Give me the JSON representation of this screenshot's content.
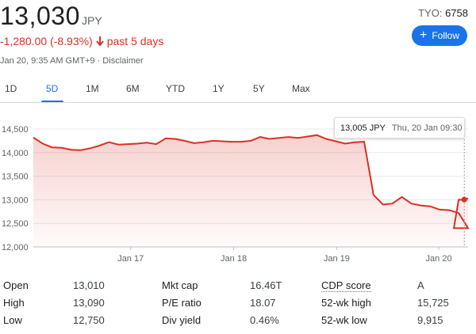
{
  "header": {
    "price": "13,030",
    "currency": "JPY",
    "change": "-1,280.00 (-8.93%)",
    "change_period": "past 5 days",
    "meta": "Jan 20, 9:35 AM GMT+9 · Disclaimer",
    "exchange": "TYO:",
    "symbol": "6758",
    "follow_label": "Follow",
    "change_color": "#d93025",
    "accent": "#1a73e8"
  },
  "tabs": [
    "1D",
    "5D",
    "1M",
    "6M",
    "YTD",
    "1Y",
    "5Y",
    "Max"
  ],
  "active_tab": "5D",
  "tooltip": {
    "price": "13,005 JPY",
    "date": "Thu, 20 Jan 09:30"
  },
  "chart_data": {
    "type": "area",
    "title": "",
    "xlabel": "",
    "ylabel": "",
    "ylim": [
      12000,
      14500
    ],
    "yticks": [
      12000,
      12500,
      13000,
      13500,
      14000,
      14500
    ],
    "ytick_labels": [
      "12,000",
      "12,500",
      "13,000",
      "13,500",
      "14,000",
      "14,500"
    ],
    "xtick_labels": [
      "Jan 17",
      "Jan 18",
      "Jan 19",
      "Jan 20"
    ],
    "xtick_positions": [
      10.3,
      21.2,
      32.1,
      42.9
    ],
    "xlim": [
      0,
      46
    ],
    "line_color": "#d93025",
    "grid": true,
    "series": [
      {
        "x": [
          0,
          1,
          2,
          3,
          4,
          5,
          6,
          7,
          8,
          9,
          10,
          11,
          12,
          13,
          14,
          15,
          16,
          17,
          18,
          19,
          20,
          21,
          22,
          23,
          24,
          25,
          26,
          27,
          28,
          29,
          30,
          31,
          32,
          33,
          34,
          35,
          36,
          37,
          38,
          39,
          40,
          41,
          42,
          43,
          44,
          45,
          46
        ],
        "values": [
          14320,
          14190,
          14110,
          14100,
          14060,
          14050,
          14090,
          14150,
          14220,
          14170,
          14180,
          14190,
          14210,
          14180,
          14300,
          14290,
          14250,
          14200,
          14220,
          14250,
          14240,
          14230,
          14230,
          14250,
          14330,
          14290,
          14310,
          14330,
          14310,
          14340,
          14370,
          14290,
          14240,
          14190,
          14220,
          14230,
          13100,
          12900,
          12920,
          13060,
          12920,
          12880,
          12860,
          12790,
          12780,
          12720,
          12400
        ],
        "tail_x": [
          44.5,
          45,
          45.3,
          45.6,
          46
        ],
        "tail_values": [
          12400,
          13000,
          13000,
          13005,
          13030
        ]
      }
    ]
  },
  "stats": [
    {
      "label": "Open",
      "value": "13,010"
    },
    {
      "label": "High",
      "value": "13,090"
    },
    {
      "label": "Low",
      "value": "12,750"
    },
    {
      "label": "Mkt cap",
      "value": "16.46T"
    },
    {
      "label": "P/E ratio",
      "value": "18.07"
    },
    {
      "label": "Div yield",
      "value": "0.46%"
    },
    {
      "label": "CDP score",
      "value": "A"
    },
    {
      "label": "52-wk high",
      "value": "15,725"
    },
    {
      "label": "52-wk low",
      "value": "9,915"
    }
  ]
}
